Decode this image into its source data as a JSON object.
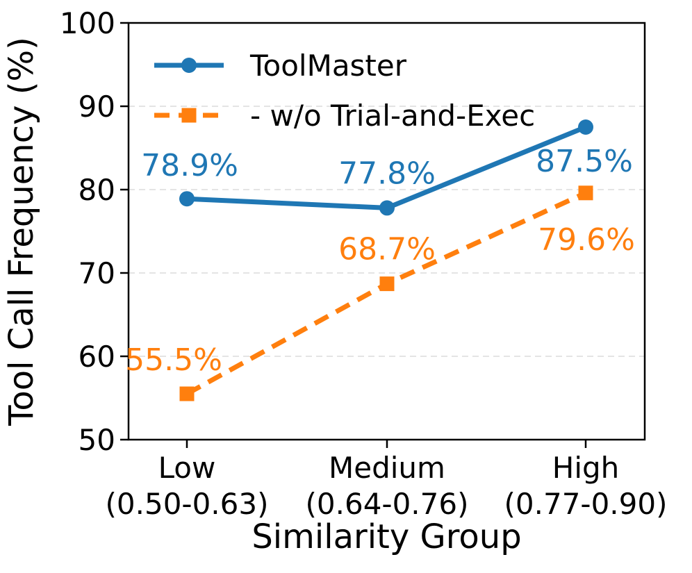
{
  "figure": {
    "background": "#ffffff",
    "text_color": "#000000"
  },
  "chart_data": {
    "type": "line",
    "title": "",
    "xlabel": "Similarity Group",
    "ylabel": "Tool Call Frequency (%)",
    "categories": [
      "Low",
      "Medium",
      "High"
    ],
    "category_ranges": [
      "(0.50-0.63)",
      "(0.64-0.76)",
      "(0.77-0.90)"
    ],
    "ylim": [
      50,
      100
    ],
    "yticks": [
      "50",
      "60",
      "70",
      "80",
      "90",
      "100"
    ],
    "grid": {
      "axis": "y",
      "style": "dashed",
      "color": "#dcdcdc"
    },
    "legend": {
      "position": "upper-left-inside",
      "frame": false
    },
    "series": [
      {
        "name": "ToolMaster",
        "color": "#1f77b4",
        "line_style": "solid",
        "marker": "circle",
        "values": [
          78.9,
          77.8,
          87.5
        ],
        "point_labels": [
          "78.9%",
          "77.8%",
          "87.5%"
        ],
        "label_offsets": [
          [
            4,
            -48
          ],
          [
            0,
            -50
          ],
          [
            -2,
            49
          ]
        ]
      },
      {
        "name": "- w/o Trial-and-Exec",
        "color": "#ff7f0e",
        "line_style": "dashed",
        "marker": "square",
        "values": [
          55.5,
          68.7,
          79.6
        ],
        "point_labels": [
          "55.5%",
          "68.7%",
          "79.6%"
        ],
        "label_offsets": [
          [
            -19,
            -49
          ],
          [
            0,
            -50
          ],
          [
            1,
            67
          ]
        ]
      }
    ]
  }
}
